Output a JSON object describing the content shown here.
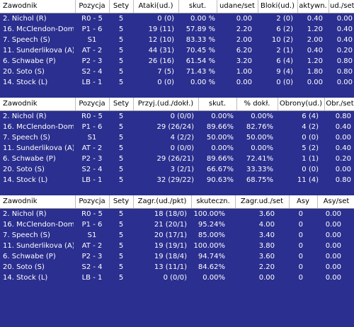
{
  "panel1": {
    "headers": [
      "Zawodnik",
      "Pozycja",
      "Sety",
      "Ataki(ud.)",
      "skut.",
      "udane/set",
      "Bloki(ud.)",
      "aktywn.",
      "ud./set"
    ],
    "rows": [
      [
        "2. Nichol (R)",
        "R0 - 5",
        "5",
        "0 (0)",
        "0.00 %",
        "0.00",
        "2 (0)",
        "0.40",
        "0.00"
      ],
      [
        "16. McClendon-Dom...",
        "P1 - 6",
        "5",
        "19 (11)",
        "57.89 %",
        "2.20",
        "6 (2)",
        "1.20",
        "0.40"
      ],
      [
        "7. Speech (S)",
        "S1",
        "5",
        "12 (10)",
        "83.33 %",
        "2.00",
        "10 (2)",
        "2.00",
        "0.40"
      ],
      [
        "11. Sunderlikova (A)",
        "AT - 2",
        "5",
        "44 (31)",
        "70.45 %",
        "6.20",
        "2 (1)",
        "0.40",
        "0.20"
      ],
      [
        "6. Schwabe (P)",
        "P2 - 3",
        "5",
        "26 (16)",
        "61.54 %",
        "3.20",
        "6 (4)",
        "1.20",
        "0.80"
      ],
      [
        "20. Soto (S)",
        "S2 - 4",
        "5",
        "7 (5)",
        "71.43 %",
        "1.00",
        "9 (4)",
        "1.80",
        "0.80"
      ],
      [
        "14. Stock (L)",
        "LB - 1",
        "5",
        "0 (0)",
        "0.00 %",
        "0.00",
        "0 (0)",
        "0.00",
        "0.00"
      ]
    ]
  },
  "panel2": {
    "headers": [
      "Zawodnik",
      "Pozycja",
      "Sety",
      "Przyj.(ud./dokł.)",
      "skut.",
      "% dokł.",
      "Obrony(ud.)",
      "Obr./set"
    ],
    "rows": [
      [
        "2. Nichol (R)",
        "R0 - 5",
        "5",
        "0 (0/0)",
        "0.00%",
        "0.00%",
        "6 (4)",
        "0.80"
      ],
      [
        "16. McClendon-Dom...",
        "P1 - 6",
        "5",
        "29 (26/24)",
        "89.66%",
        "82.76%",
        "4 (2)",
        "0.40"
      ],
      [
        "7. Speech (S)",
        "S1",
        "5",
        "4 (2/2)",
        "50.00%",
        "50.00%",
        "0 (0)",
        "0.00"
      ],
      [
        "11. Sunderlikova (A)",
        "AT - 2",
        "5",
        "0 (0/0)",
        "0.00%",
        "0.00%",
        "5 (2)",
        "0.40"
      ],
      [
        "6. Schwabe (P)",
        "P2 - 3",
        "5",
        "29 (26/21)",
        "89.66%",
        "72.41%",
        "1 (1)",
        "0.20"
      ],
      [
        "20. Soto (S)",
        "S2 - 4",
        "5",
        "3 (2/1)",
        "66.67%",
        "33.33%",
        "0 (0)",
        "0.00"
      ],
      [
        "14. Stock (L)",
        "LB - 1",
        "5",
        "32 (29/22)",
        "90.63%",
        "68.75%",
        "11 (4)",
        "0.80"
      ]
    ]
  },
  "panel3": {
    "headers": [
      "Zawodnik",
      "Pozycja",
      "Sety",
      "Zagr.(ud./pkt)",
      "skuteczn.",
      "Zagr.ud./set",
      "Asy",
      "Asy/set"
    ],
    "rows": [
      [
        "2. Nichol (R)",
        "R0 - 5",
        "5",
        "18 (18/0)",
        "100.00%",
        "3.60",
        "0",
        "0.00"
      ],
      [
        "16. McClendon-Dom...",
        "P1 - 6",
        "5",
        "21 (20/1)",
        "95.24%",
        "4.00",
        "0",
        "0.00"
      ],
      [
        "7. Speech (S)",
        "S1",
        "5",
        "20 (17/1)",
        "85.00%",
        "3.40",
        "0",
        "0.00"
      ],
      [
        "11. Sunderlikova (A)",
        "AT - 2",
        "5",
        "19 (19/1)",
        "100.00%",
        "3.80",
        "0",
        "0.00"
      ],
      [
        "6. Schwabe (P)",
        "P2 - 3",
        "5",
        "19 (18/4)",
        "94.74%",
        "3.60",
        "0",
        "0.00"
      ],
      [
        "20. Soto (S)",
        "S2 - 4",
        "5",
        "13 (11/1)",
        "84.62%",
        "2.20",
        "0",
        "0.00"
      ],
      [
        "14. Stock (L)",
        "LB - 1",
        "5",
        "0 (0/0)",
        "0.00%",
        "0.00",
        "0",
        "0.00"
      ]
    ]
  }
}
